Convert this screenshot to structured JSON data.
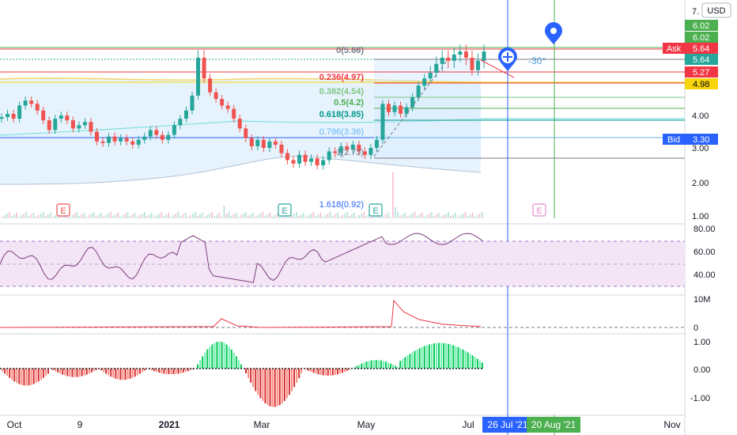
{
  "chart_data": {
    "type": "candlestick",
    "currency": "USD",
    "x_ticks": [
      "Oct",
      "9",
      "2021",
      "Mar",
      "May",
      "Jul",
      "Nov"
    ],
    "y_ticks": [
      "7.",
      "6.02",
      "6.02",
      "5.64",
      "5.64",
      "5.27",
      "4.98",
      "4.00",
      "3.00",
      "2.00",
      "1.00"
    ],
    "y_tick_values": [
      7,
      4,
      3,
      2,
      1
    ],
    "price_labels": [
      {
        "label": "6.02",
        "value": 6.02,
        "color": "#4caf50"
      },
      {
        "label": "6.02",
        "value": 6.02,
        "color": "#4caf50"
      },
      {
        "label": "Ask",
        "text": "5.64",
        "value": 5.64,
        "color": "#f23645"
      },
      {
        "label": "5.64",
        "value": 5.64,
        "color": "#26a69a"
      },
      {
        "label": "5.27",
        "value": 5.27,
        "color": "#f23645"
      },
      {
        "label": "4.98",
        "value": 4.98,
        "color": "#f7d40c",
        "text_color": "#000000"
      },
      {
        "label": "Bid",
        "text": "3.30",
        "value": 3.3,
        "color": "#2962ff"
      }
    ],
    "fibonacci": [
      {
        "label": "0(5.66)",
        "level": 0,
        "price": 5.66,
        "color": "#787b86"
      },
      {
        "label": "0.236(4.97)",
        "level": 0.236,
        "price": 4.97,
        "color": "#f23645"
      },
      {
        "label": "0.382(4.54)",
        "level": 0.382,
        "price": 4.54,
        "color": "#81c784"
      },
      {
        "label": "0.5(4.2)",
        "level": 0.5,
        "price": 4.2,
        "color": "#4caf50"
      },
      {
        "label": "0.618(3.85)",
        "level": 0.618,
        "price": 3.85,
        "color": "#009688"
      },
      {
        "label": "0.786(3.36)",
        "level": 0.786,
        "price": 3.36,
        "color": "#64b5f6"
      },
      {
        "label": "1(2.73)",
        "level": 1,
        "price": 2.73,
        "color": "#787b86"
      },
      {
        "label": "1.618(0.92)",
        "level": 1.618,
        "price": 0.92,
        "color": "#2962ff"
      }
    ],
    "price_series": [
      3.95,
      4.05,
      3.9,
      4.3,
      4.45,
      4.35,
      4.15,
      3.85,
      3.55,
      3.9,
      4.0,
      3.85,
      3.6,
      3.7,
      3.8,
      3.5,
      3.2,
      3.15,
      3.35,
      3.2,
      3.3,
      3.2,
      3.1,
      3.25,
      3.35,
      3.55,
      3.4,
      3.25,
      3.4,
      3.7,
      3.9,
      4.15,
      4.6,
      5.5,
      5.1,
      4.7,
      4.5,
      4.3,
      4.2,
      3.9,
      3.6,
      3.3,
      3.05,
      3.25,
      3.0,
      3.2,
      3.1,
      2.85,
      2.65,
      2.55,
      2.8,
      2.6,
      2.7,
      2.5,
      2.65,
      2.9,
      2.85,
      3.05,
      2.95,
      3.1,
      2.9,
      2.8,
      3.0,
      3.25,
      4.35,
      4.1,
      4.3,
      4.05,
      4.25,
      4.55,
      4.9,
      5.1,
      5.25,
      5.4,
      5.5,
      5.45,
      5.55,
      5.6,
      5.5,
      5.3,
      5.45,
      5.6
    ],
    "rsi": {
      "ticks": [
        "80.00",
        "60.00",
        "40.00"
      ],
      "tick_values": [
        80,
        60,
        40
      ],
      "band": [
        30,
        70
      ]
    },
    "volume": {
      "ticks": [
        "10M",
        "0"
      ],
      "tick_values": [
        10,
        0
      ]
    },
    "oscillator": {
      "ticks": [
        "1.00",
        "0.00",
        "-1.00"
      ],
      "tick_values": [
        1,
        0,
        -1
      ]
    },
    "date_markers": [
      {
        "label": "26 Jul '21",
        "color": "#2962ff"
      },
      {
        "label": "20 Aug '21",
        "color": "#4caf50"
      }
    ],
    "events": [
      "E",
      "E",
      "E",
      "E"
    ],
    "annotation": "-30°"
  }
}
